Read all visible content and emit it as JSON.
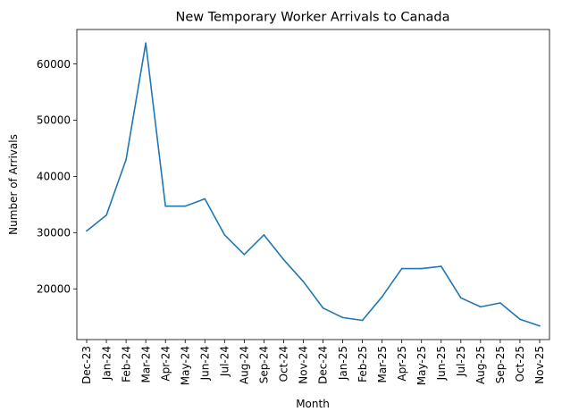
{
  "chart_data": {
    "type": "line",
    "title": "New Temporary Worker Arrivals to Canada",
    "xlabel": "Month",
    "ylabel": "Number of Arrivals",
    "categories": [
      "Dec-23",
      "Jan-24",
      "Feb-24",
      "Mar-24",
      "Apr-24",
      "May-24",
      "Jun-24",
      "Jul-24",
      "Aug-24",
      "Sep-24",
      "Oct-24",
      "Nov-24",
      "Dec-24",
      "Jan-25",
      "Feb-25",
      "Mar-25",
      "Apr-25",
      "May-25",
      "Jun-25",
      "Jul-25",
      "Aug-25",
      "Sep-25",
      "Oct-25",
      "Nov-25"
    ],
    "series": [
      {
        "values": [
          30300,
          33100,
          43000,
          63700,
          34700,
          34700,
          36000,
          29600,
          26100,
          29600,
          25200,
          21300,
          16600,
          14900,
          14400,
          18600,
          23600,
          23600,
          24000,
          18400,
          16800,
          17500,
          14600,
          13400
        ],
        "color": "#1f77b4"
      }
    ],
    "yticks": [
      20000,
      30000,
      40000,
      50000,
      60000
    ],
    "ytick_labels": [
      "20000",
      "30000",
      "40000",
      "50000",
      "60000"
    ],
    "ylim": [
      10985,
      66115
    ],
    "grid": false,
    "legend": "none"
  }
}
